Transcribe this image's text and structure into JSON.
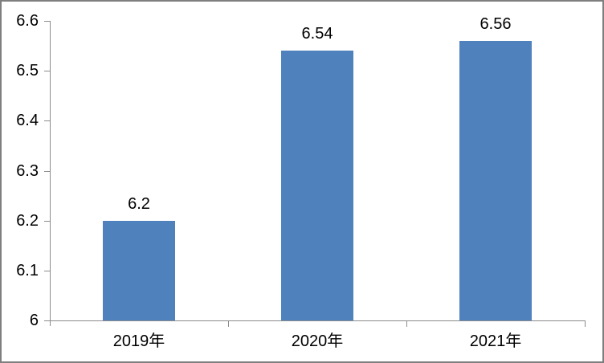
{
  "chart_data": {
    "type": "bar",
    "title": "",
    "categories": [
      "2019年",
      "2020年",
      "2021年"
    ],
    "values": [
      6.2,
      6.54,
      6.56
    ],
    "data_labels": [
      "6.2",
      "6.54",
      "6.56"
    ],
    "xlabel": "",
    "ylabel": "",
    "ylim": [
      6,
      6.6
    ],
    "y_tick_step": 0.1,
    "y_tick_labels": [
      "6",
      "6.1",
      "6.2",
      "6.3",
      "6.4",
      "6.5",
      "6.6"
    ],
    "grid": "off",
    "legend_position": "none",
    "colors": {
      "bar_fill": "#4F81BD",
      "axis_line": "#8C8C8C",
      "label_text": "#000000",
      "frame_border": "#7F7F7F",
      "background": "#FFFFFF"
    }
  }
}
